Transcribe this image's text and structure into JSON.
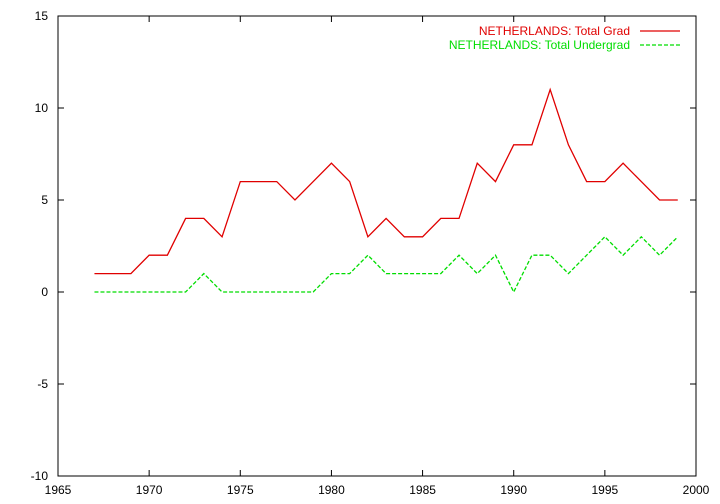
{
  "chart_data": {
    "type": "line",
    "title": "",
    "xlabel": "",
    "ylabel": "",
    "xlim": [
      1965,
      2000
    ],
    "ylim": [
      -10,
      15
    ],
    "xticks": [
      1965,
      1970,
      1975,
      1980,
      1985,
      1990,
      1995,
      2000
    ],
    "yticks": [
      -10,
      -5,
      0,
      5,
      10,
      15
    ],
    "grid": false,
    "legend_position": "top-right",
    "series": [
      {
        "name": "NETHERLANDS: Total Grad",
        "color": "#e00000",
        "dash": "solid",
        "x": [
          1967,
          1968,
          1969,
          1970,
          1971,
          1972,
          1973,
          1974,
          1975,
          1976,
          1977,
          1978,
          1979,
          1980,
          1981,
          1982,
          1983,
          1984,
          1985,
          1986,
          1987,
          1988,
          1989,
          1990,
          1991,
          1992,
          1993,
          1994,
          1995,
          1996,
          1997,
          1998,
          1999
        ],
        "values": [
          1,
          1,
          1,
          2,
          2,
          4,
          4,
          3,
          6,
          6,
          6,
          5,
          6,
          7,
          6,
          3,
          4,
          3,
          3,
          4,
          4,
          7,
          6,
          8,
          8,
          11,
          8,
          6,
          6,
          7,
          6,
          5,
          5
        ]
      },
      {
        "name": "NETHERLANDS: Total Undergrad",
        "color": "#00dd00",
        "dash": "dashed",
        "x": [
          1967,
          1968,
          1969,
          1970,
          1971,
          1972,
          1973,
          1974,
          1975,
          1976,
          1977,
          1978,
          1979,
          1980,
          1981,
          1982,
          1983,
          1984,
          1985,
          1986,
          1987,
          1988,
          1989,
          1990,
          1991,
          1992,
          1993,
          1994,
          1995,
          1996,
          1997,
          1998,
          1999
        ],
        "values": [
          0,
          0,
          0,
          0,
          0,
          0,
          1,
          0,
          0,
          0,
          0,
          0,
          0,
          1,
          1,
          2,
          1,
          1,
          1,
          1,
          2,
          1,
          2,
          0,
          2,
          2,
          1,
          2,
          3,
          2,
          3,
          2,
          3
        ]
      }
    ]
  }
}
